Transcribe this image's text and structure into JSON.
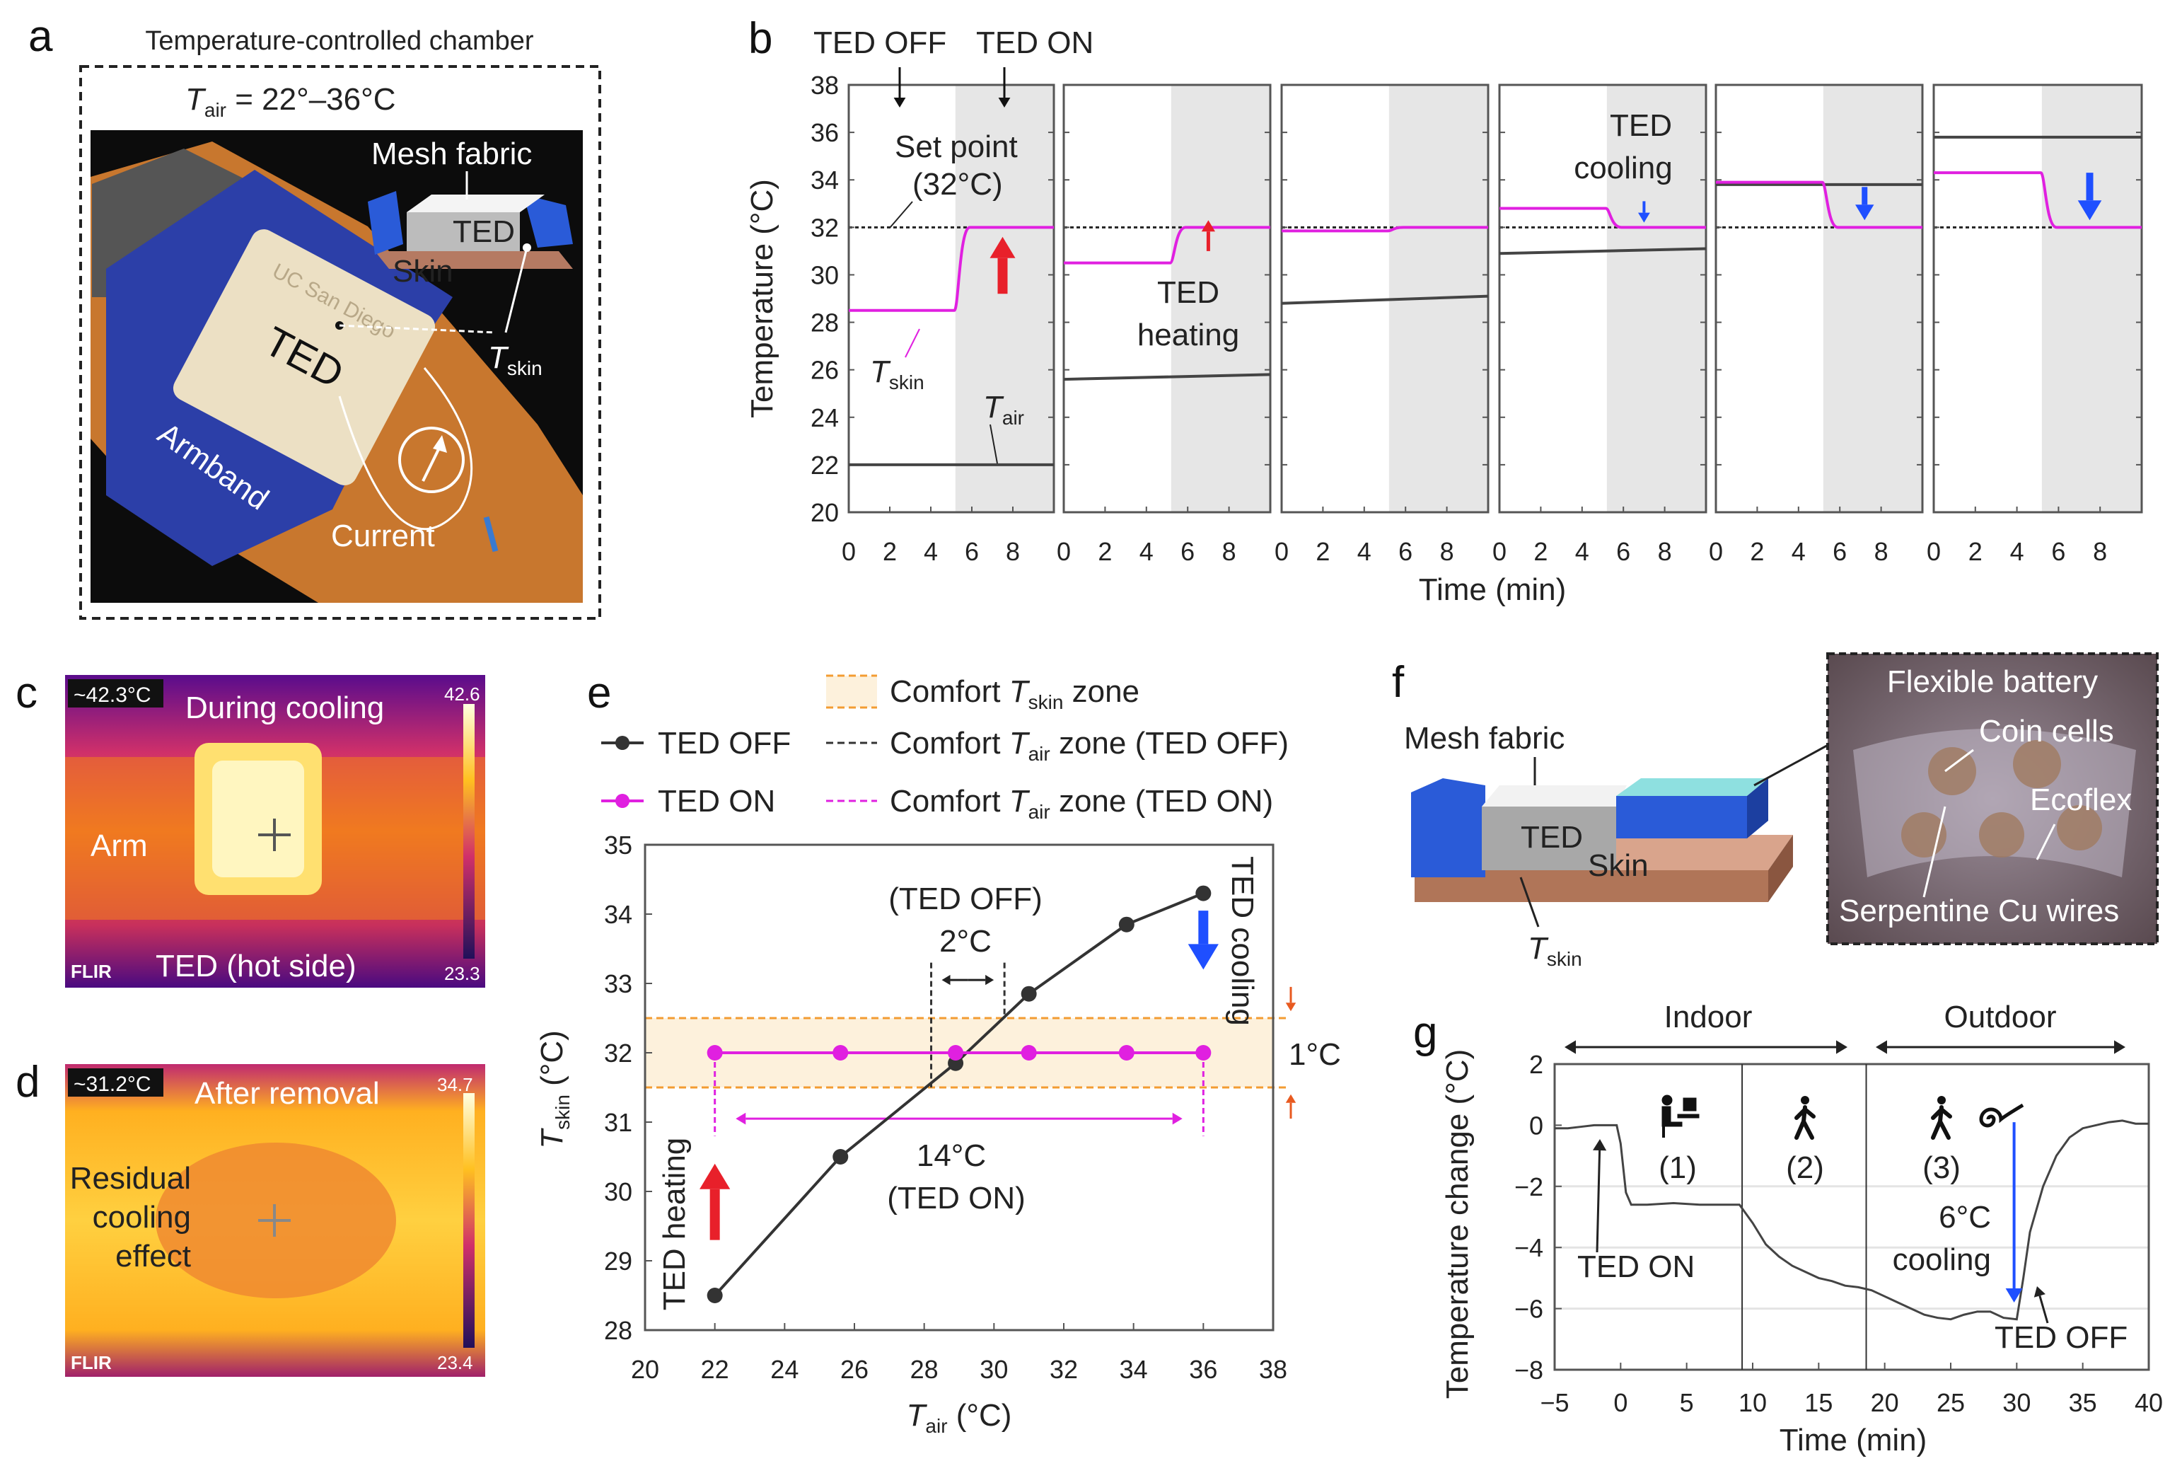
{
  "panel_labels": {
    "a": "a",
    "b": "b",
    "c": "c",
    "d": "d",
    "e": "e",
    "f": "f",
    "g": "g"
  },
  "panel_a": {
    "title": "Temperature-controlled chamber",
    "tair_T": "T",
    "tair_sub": "air",
    "tair_range": " = 22°–36°C",
    "mesh_fabric": "Mesh fabric",
    "inset_ted": "TED",
    "inset_skin": "Skin",
    "ted": "TED",
    "brand": "UC San Diego",
    "tskin_T": "T",
    "tskin_sub": "skin",
    "armband": "Armband",
    "current": "Current"
  },
  "panel_c": {
    "badge": "~42.3°C",
    "title": "During cooling",
    "arm": "Arm",
    "ted_hot": "TED (hot side)",
    "flir": "FLIR",
    "scale_max": "42.6",
    "scale_min": "23.3"
  },
  "panel_d": {
    "badge": "~31.2°C",
    "title": "After removal",
    "residual_1": "Residual",
    "residual_2": "cooling",
    "residual_3": "effect",
    "flir": "FLIR",
    "scale_max": "34.7",
    "scale_min": "23.4"
  },
  "panel_f": {
    "mesh_fabric": "Mesh fabric",
    "ted": "TED",
    "skin": "Skin",
    "tskin_T": "T",
    "tskin_sub": "skin",
    "flexible_battery": "Flexible battery",
    "coin_cells": "Coin cells",
    "ecoflex": "Ecoflex",
    "serpentine": "Serpentine Cu wires"
  },
  "colors": {
    "tskin": "#e020e0",
    "tair": "#444444",
    "heating": "#e8202a",
    "cooling": "#1f4fff",
    "comfort": "#f39c32",
    "shade": "#e6e6e6"
  },
  "chart_data": [
    {
      "id": "b",
      "type": "line",
      "ylabel": "Temperature (°C)",
      "xlabel": "Time (min)",
      "ylim": [
        20,
        38
      ],
      "xlim": [
        0,
        10
      ],
      "yticks": [
        "20",
        "22",
        "24",
        "26",
        "28",
        "30",
        "32",
        "34",
        "36",
        "38"
      ],
      "xticks": [
        "0",
        "2",
        "4",
        "6",
        "8"
      ],
      "ted_on_time": 5.2,
      "set_point": 32,
      "annotations": {
        "ted_off": "TED OFF",
        "ted_on": "TED ON",
        "set_point": "Set point",
        "set_point_val": "(32°C)",
        "tskin_T": "T",
        "tskin_sub": "skin",
        "tair_T": "T",
        "tair_sub": "air",
        "heating_1": "TED",
        "heating_2": "heating",
        "cooling_1": "TED",
        "cooling_2": "cooling"
      },
      "panels": [
        {
          "tair": [
            22.0,
            22.0
          ],
          "tskin_off": 28.5,
          "tskin_on": 32.0
        },
        {
          "tair": [
            25.6,
            25.8
          ],
          "tskin_off": 30.5,
          "tskin_on": 32.0
        },
        {
          "tair": [
            28.8,
            29.1
          ],
          "tskin_off": 31.85,
          "tskin_on": 32.0
        },
        {
          "tair": [
            30.9,
            31.1
          ],
          "tskin_off": 32.8,
          "tskin_on": 32.0
        },
        {
          "tair": [
            33.8,
            33.8
          ],
          "tskin_off": 33.9,
          "tskin_on": 32.0
        },
        {
          "tair": [
            35.8,
            35.8
          ],
          "tskin_off": 34.3,
          "tskin_on": 32.0
        }
      ]
    },
    {
      "id": "e",
      "type": "scatter",
      "xlabel_T": "T",
      "xlabel_sub": "air",
      "xlabel_unit": " (°C)",
      "ylabel_T": "T",
      "ylabel_sub": "skin",
      "ylabel_unit": " (°C)",
      "xlim": [
        20,
        38
      ],
      "ylim": [
        28,
        35
      ],
      "xticks": [
        "20",
        "22",
        "24",
        "26",
        "28",
        "30",
        "32",
        "34",
        "36",
        "38"
      ],
      "yticks": [
        "28",
        "29",
        "30",
        "31",
        "32",
        "33",
        "34",
        "35"
      ],
      "x": [
        22,
        25.6,
        28.9,
        31,
        33.8,
        36
      ],
      "series": [
        {
          "name": "TED OFF",
          "values": [
            28.5,
            30.5,
            31.85,
            32.85,
            33.85,
            34.3
          ]
        },
        {
          "name": "TED ON",
          "values": [
            32,
            32,
            32,
            32,
            32,
            32
          ]
        }
      ],
      "comfort_tskin_zone": [
        31.5,
        32.5
      ],
      "comfort_tair_zone_off": [
        28.2,
        30.3
      ],
      "comfort_tair_zone_on": [
        22,
        36
      ],
      "legend": {
        "comfort_T": "Comfort ",
        "T": "T",
        "skin": "skin",
        "zone": " zone",
        "air": "air",
        "zone_off": " zone (TED OFF)",
        "zone_on": " zone (TED ON)",
        "ted_off": "TED OFF",
        "ted_on": "TED ON"
      },
      "annotations": {
        "ted_off_paren": "(TED OFF)",
        "two_c": "2°C",
        "fourteen_c": "14°C",
        "ted_on_paren": "(TED ON)",
        "ted_heating": "TED heating",
        "ted_cooling": "TED cooling",
        "one_c": "1°C"
      }
    },
    {
      "id": "g",
      "type": "line",
      "xlabel": "Time (min)",
      "ylabel": "Temperature change (°C)",
      "xlim": [
        -5,
        40
      ],
      "ylim": [
        -8,
        2
      ],
      "xticks": [
        "−5",
        "0",
        "5",
        "10",
        "15",
        "20",
        "25",
        "30",
        "35",
        "40"
      ],
      "yticks": [
        "−8",
        "−6",
        "−4",
        "−2",
        "0",
        "2"
      ],
      "x": [
        -5,
        -4,
        -3,
        -2,
        -1,
        -0.3,
        0,
        0.4,
        0.8,
        2,
        4,
        6,
        8,
        9,
        10,
        11,
        12,
        13,
        14,
        15,
        16,
        17,
        18,
        19,
        20,
        21,
        22,
        23,
        24,
        25,
        26,
        27,
        28,
        29,
        30,
        30.5,
        31,
        32,
        33,
        34,
        35,
        36,
        37,
        38,
        39,
        40
      ],
      "y": [
        -0.1,
        -0.1,
        -0.05,
        0,
        0,
        0,
        -0.6,
        -2.2,
        -2.6,
        -2.6,
        -2.55,
        -2.6,
        -2.6,
        -2.6,
        -3.2,
        -3.9,
        -4.3,
        -4.6,
        -4.8,
        -5.0,
        -5.1,
        -5.25,
        -5.3,
        -5.4,
        -5.6,
        -5.8,
        -6.0,
        -6.2,
        -6.3,
        -6.35,
        -6.2,
        -6.1,
        -6.1,
        -6.3,
        -6.35,
        -5.0,
        -3.5,
        -2.0,
        -1.0,
        -0.4,
        -0.1,
        0,
        0.1,
        0.15,
        0.05,
        0.05
      ],
      "phase_boundaries": [
        9.2,
        18.6
      ],
      "annotations": {
        "indoor": "Indoor",
        "outdoor": "Outdoor",
        "phase_1": "(1)",
        "phase_2": "(2)",
        "phase_3": "(3)",
        "ted_on": "TED ON",
        "ted_off": "TED OFF",
        "cooling_1": "6°C",
        "cooling_2": "cooling"
      }
    }
  ]
}
